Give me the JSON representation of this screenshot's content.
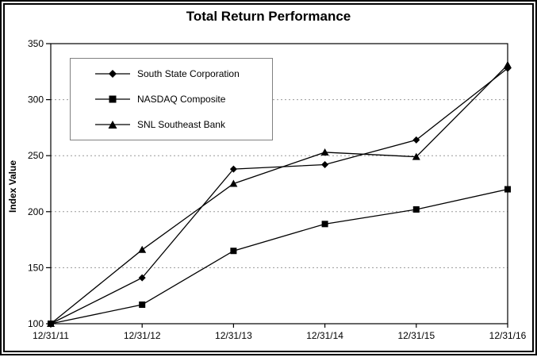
{
  "chart_data": {
    "type": "line",
    "title": "Total Return Performance",
    "ylabel": "Index Value",
    "xlabel": "",
    "x_categories": [
      "12/31/11",
      "12/31/12",
      "12/31/13",
      "12/31/14",
      "12/31/15",
      "12/31/16"
    ],
    "ylim": [
      100,
      350
    ],
    "yticks": [
      100,
      150,
      200,
      250,
      300,
      350
    ],
    "grid": "horizontal-dashed",
    "legend_position": "upper-left-inside",
    "series": [
      {
        "name": "South State Corporation",
        "marker": "diamond",
        "color": "#000000",
        "values": [
          100,
          141,
          238,
          242,
          264,
          328
        ]
      },
      {
        "name": "NASDAQ Composite",
        "marker": "square",
        "color": "#000000",
        "values": [
          100,
          117,
          165,
          189,
          202,
          220
        ]
      },
      {
        "name": "SNL Southeast Bank",
        "marker": "triangle",
        "color": "#000000",
        "values": [
          100,
          166,
          225,
          253,
          249,
          331
        ]
      }
    ]
  },
  "colors": {
    "background": "#ffffff",
    "frame": "#000000",
    "axis": "#000000",
    "grid": "#9a9a9a",
    "legend_border": "#808080",
    "series_line": "#000000"
  }
}
